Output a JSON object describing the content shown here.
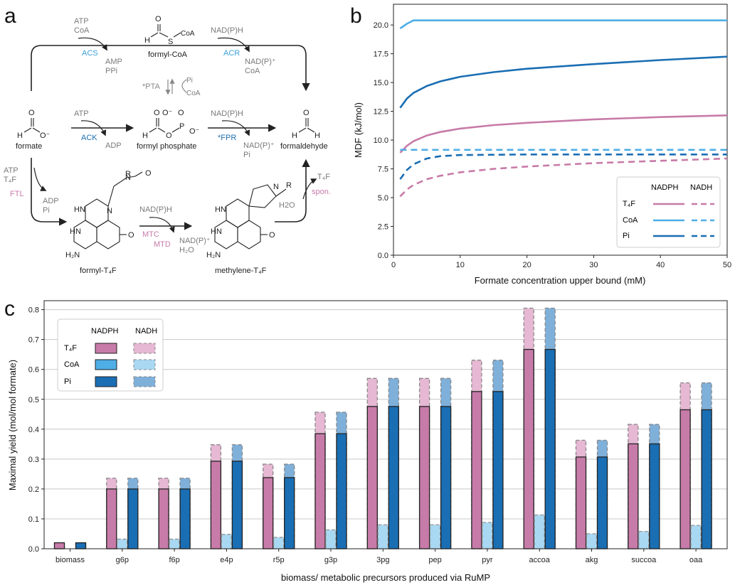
{
  "panel_labels": {
    "a": "a",
    "b": "b",
    "c": "c"
  },
  "colors": {
    "t4f": "#c77ba8",
    "t4f_light": "#e6b8d3",
    "coa": "#4eaee6",
    "coa_light": "#a9d8f3",
    "pi": "#1a6eb3",
    "pi_light": "#7fb0da",
    "enzyme_blue": "#3aa0d8",
    "enzyme_darkblue": "#1c6fb0",
    "enzyme_pink": "#c97aab",
    "grid": "#c8c8c8"
  },
  "pathway": {
    "compounds": {
      "formate": "formate",
      "formyl_coa": "formyl-CoA",
      "formyl_phosphate": "formyl phosphate",
      "formaldehyde": "formaldehyde",
      "formyl_t4f": "formyl-T₄F",
      "methylene_t4f": "methylene-T₄F"
    },
    "enzymes": {
      "acs": "ACS",
      "acr": "ACR",
      "ack": "ACK",
      "fpr": "*FPR",
      "ftl": "FTL",
      "mtc": "MTC",
      "mtd": "MTD",
      "pta": "*PTA",
      "spon": "spon."
    },
    "cofactors": {
      "atp": "ATP",
      "coa": "CoA",
      "amp": "AMP",
      "ppi": "PPi",
      "adp": "ADP",
      "pi": "Pi",
      "nadph": "NAD(P)H",
      "nadp": "NAD(P)⁺",
      "t4f": "T₄F",
      "h2o": "H2O",
      "h2o_sub": "H₂O"
    },
    "atoms": {
      "o": "O",
      "o_minus": "O⁻",
      "h": "H",
      "s": "S",
      "p": "P",
      "n": "N",
      "hn": "HN",
      "nh": "NH",
      "h2n": "H₂N",
      "r": "R",
      "coa": "CoA"
    }
  },
  "chart_data": [
    {
      "panel": "b",
      "type": "line",
      "title": "",
      "xlabel": "Formate concentration upper bound (mM)",
      "ylabel": "MDF (kJ/mol)",
      "xlim": [
        0,
        50
      ],
      "ylim": [
        0,
        21.8
      ],
      "xticks": [
        0,
        10,
        20,
        30,
        40,
        50
      ],
      "yticks": [
        "0.0",
        "2.5",
        "5.0",
        "7.5",
        "10.0",
        "12.5",
        "15.0",
        "17.5",
        "20.0"
      ],
      "legend": {
        "position": "lower-right",
        "col_headers": [
          "NADPH",
          "NADH"
        ],
        "rows": [
          "T₄F",
          "CoA",
          "Pi"
        ]
      },
      "series": [
        {
          "name": "T4F NADPH",
          "style": "solid",
          "color_key": "t4f",
          "x": [
            1,
            2,
            3,
            5,
            7,
            10,
            15,
            20,
            30,
            40,
            50
          ],
          "y": [
            8.9,
            9.5,
            9.9,
            10.4,
            10.7,
            11.0,
            11.3,
            11.5,
            11.8,
            12.0,
            12.15
          ]
        },
        {
          "name": "T4F NADH",
          "style": "dashed",
          "color_key": "t4f",
          "x": [
            1,
            2,
            3,
            5,
            7,
            10,
            15,
            20,
            30,
            40,
            50
          ],
          "y": [
            5.1,
            5.7,
            6.1,
            6.6,
            6.9,
            7.2,
            7.5,
            7.7,
            8.0,
            8.2,
            8.4
          ]
        },
        {
          "name": "CoA NADPH",
          "style": "solid",
          "color_key": "coa",
          "x": [
            1,
            2,
            3,
            5,
            10,
            20,
            30,
            40,
            50
          ],
          "y": [
            19.7,
            20.1,
            20.4,
            20.4,
            20.4,
            20.4,
            20.4,
            20.4,
            20.4
          ]
        },
        {
          "name": "CoA NADH",
          "style": "dashed",
          "color_key": "coa",
          "x": [
            1,
            2,
            5,
            10,
            20,
            30,
            40,
            50
          ],
          "y": [
            9.15,
            9.15,
            9.15,
            9.15,
            9.15,
            9.15,
            9.15,
            9.15
          ]
        },
        {
          "name": "Pi NADPH",
          "style": "solid",
          "color_key": "pi",
          "x": [
            1,
            2,
            3,
            5,
            7,
            10,
            15,
            20,
            30,
            40,
            50
          ],
          "y": [
            12.8,
            13.6,
            14.1,
            14.7,
            15.1,
            15.5,
            15.9,
            16.2,
            16.6,
            16.95,
            17.25
          ]
        },
        {
          "name": "Pi NADH",
          "style": "dashed",
          "color_key": "pi",
          "x": [
            1,
            2,
            3,
            5,
            7,
            10,
            20,
            30,
            40,
            50
          ],
          "y": [
            6.6,
            7.4,
            7.9,
            8.4,
            8.6,
            8.7,
            8.75,
            8.75,
            8.75,
            8.75
          ]
        }
      ]
    },
    {
      "panel": "c",
      "type": "bar",
      "title": "",
      "xlabel": "biomass/ metabolic precursors produced via RuMP",
      "ylabel": "Maximal yield (mol/mol formate)",
      "ylim": [
        0,
        0.83
      ],
      "yticks": [
        "0.0",
        "0.1",
        "0.2",
        "0.3",
        "0.4",
        "0.5",
        "0.6",
        "0.7",
        "0.8"
      ],
      "legend": {
        "position": "top-left",
        "col_headers": [
          "NADPH",
          "NADH"
        ],
        "rows": [
          "T₄F",
          "CoA",
          "Pi"
        ]
      },
      "categories": [
        "biomass",
        "g6p",
        "f6p",
        "e4p",
        "r5p",
        "g3p",
        "3pg",
        "pep",
        "pyr",
        "accoa",
        "akg",
        "succoa",
        "oaa"
      ],
      "series": [
        {
          "name": "T4F NADPH",
          "values": [
            0.02,
            0.2,
            0.2,
            0.293,
            0.238,
            0.385,
            0.476,
            0.476,
            0.526,
            0.667,
            0.307,
            0.351,
            0.465
          ]
        },
        {
          "name": "T4F NADH",
          "values": [
            0.02,
            0.236,
            0.236,
            0.348,
            0.283,
            0.457,
            0.57,
            0.57,
            0.631,
            0.805,
            0.363,
            0.416,
            0.555
          ]
        },
        {
          "name": "CoA NADPH",
          "values": [
            0.0,
            0.032,
            0.032,
            0.048,
            0.038,
            0.063,
            0.08,
            0.08,
            0.088,
            0.113,
            0.05,
            0.058,
            0.078
          ]
        },
        {
          "name": "CoA NADH",
          "values": [
            0.0,
            0.032,
            0.032,
            0.048,
            0.038,
            0.063,
            0.08,
            0.08,
            0.088,
            0.113,
            0.05,
            0.058,
            0.078
          ]
        },
        {
          "name": "Pi NADPH",
          "values": [
            0.02,
            0.2,
            0.2,
            0.293,
            0.238,
            0.385,
            0.476,
            0.476,
            0.526,
            0.667,
            0.307,
            0.351,
            0.465
          ]
        },
        {
          "name": "Pi NADH",
          "values": [
            0.02,
            0.236,
            0.236,
            0.348,
            0.283,
            0.457,
            0.57,
            0.57,
            0.631,
            0.805,
            0.363,
            0.416,
            0.555
          ]
        }
      ]
    }
  ]
}
